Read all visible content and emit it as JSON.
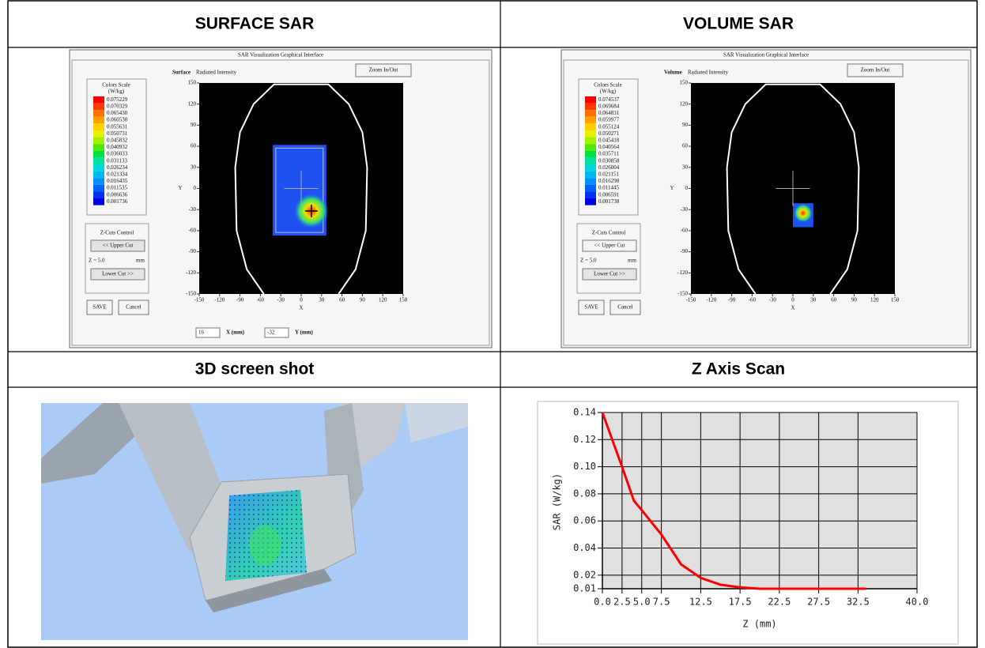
{
  "headers": [
    "SURFACE SAR",
    "VOLUME SAR",
    "3D screen shot",
    "Z Axis Scan"
  ],
  "scale_colors": [
    "#ff0000",
    "#ff3a00",
    "#ff7000",
    "#ffa000",
    "#ffd000",
    "#e8f000",
    "#a0f000",
    "#50e800",
    "#00e040",
    "#00e0a0",
    "#00d8d8",
    "#00b8f0",
    "#0090f8",
    "#0060f8",
    "#0030f0",
    "#0000e0"
  ],
  "panels": [
    {
      "window_title": "SAR Visualization Graphical Interface",
      "zoom_button": "Zoom In/Out",
      "mode": "Surface",
      "mode_caption": "Radiated Intensity",
      "scale_title": "Colors Scale",
      "scale_unit": "(W/kg)",
      "scale_values": [
        "0.075229",
        "0.070329",
        "0.065430",
        "0.060530",
        "0.055631",
        "0.050731",
        "0.045832",
        "0.040932",
        "0.036033",
        "0.031133",
        "0.026234",
        "0.021334",
        "0.016435",
        "0.011535",
        "0.006636",
        "0.001736"
      ],
      "zcuts_title": "Z-Cuts Control",
      "upper_cut": "<< Upper Cut",
      "z_label": "Z = 5.0",
      "z_unit": "mm",
      "lower_cut": "Lower Cut >>",
      "save": "SAVE",
      "cancel": "Cancel",
      "ticks": [
        -150,
        -120,
        -90,
        -60,
        -30,
        0,
        30,
        60,
        90,
        120,
        150
      ],
      "x_label": "X",
      "y_label": "Y",
      "x_input": "16",
      "x_input_label": "X (mm)",
      "y_input": "-32",
      "y_input_label": "Y (mm)"
    },
    {
      "window_title": "SAR Visualization Graphical Interface",
      "zoom_button": "Zoom In/Out",
      "mode": "Volume",
      "mode_caption": "Radiated Intensity",
      "scale_title": "Colors Scale",
      "scale_unit": "(W/kg)",
      "scale_values": [
        "0.074537",
        "0.069684",
        "0.064831",
        "0.059977",
        "0.055124",
        "0.050271",
        "0.045418",
        "0.040564",
        "0.035711",
        "0.030858",
        "0.026004",
        "0.021151",
        "0.016298",
        "0.011445",
        "0.006591",
        "0.001738"
      ],
      "zcuts_title": "Z-Cuts Control",
      "upper_cut": "<< Upper Cut",
      "z_label": "Z = 5.0",
      "z_unit": "mm",
      "lower_cut": "Lower Cut >>",
      "save": "SAVE",
      "cancel": "Cancel",
      "ticks": [
        -150,
        -120,
        -90,
        -60,
        -30,
        0,
        30,
        60,
        90,
        120,
        150
      ],
      "x_label": "X",
      "y_label": "Y"
    }
  ],
  "z_scan": {
    "type": "line",
    "xlabel": "Z (mm)",
    "ylabel": "SAR (W/kg)",
    "color": "#ff0000",
    "x": [
      0,
      2.5,
      4,
      5,
      7.5,
      10,
      12.5,
      15,
      17.5,
      20,
      25,
      30,
      33.5
    ],
    "values": [
      0.14,
      0.1,
      0.075,
      0.068,
      0.05,
      0.028,
      0.018,
      0.013,
      0.011,
      0.01,
      0.01,
      0.01,
      0.01
    ],
    "xlim": [
      0,
      40
    ],
    "ylim": [
      0.01,
      0.14
    ],
    "xticks": [
      {
        "value": 0,
        "label": "0.0"
      },
      2.5,
      {
        "value": 5,
        "label": "5.0"
      },
      7.5,
      12.5,
      17.5,
      22.5,
      27.5,
      32.5,
      {
        "value": 40,
        "label": "40.0"
      }
    ],
    "yticks": [
      0.14,
      0.12,
      {
        "value": 0.1,
        "label": "0.10"
      },
      0.08,
      0.06,
      0.04,
      0.02,
      0.01
    ],
    "grid": true
  }
}
